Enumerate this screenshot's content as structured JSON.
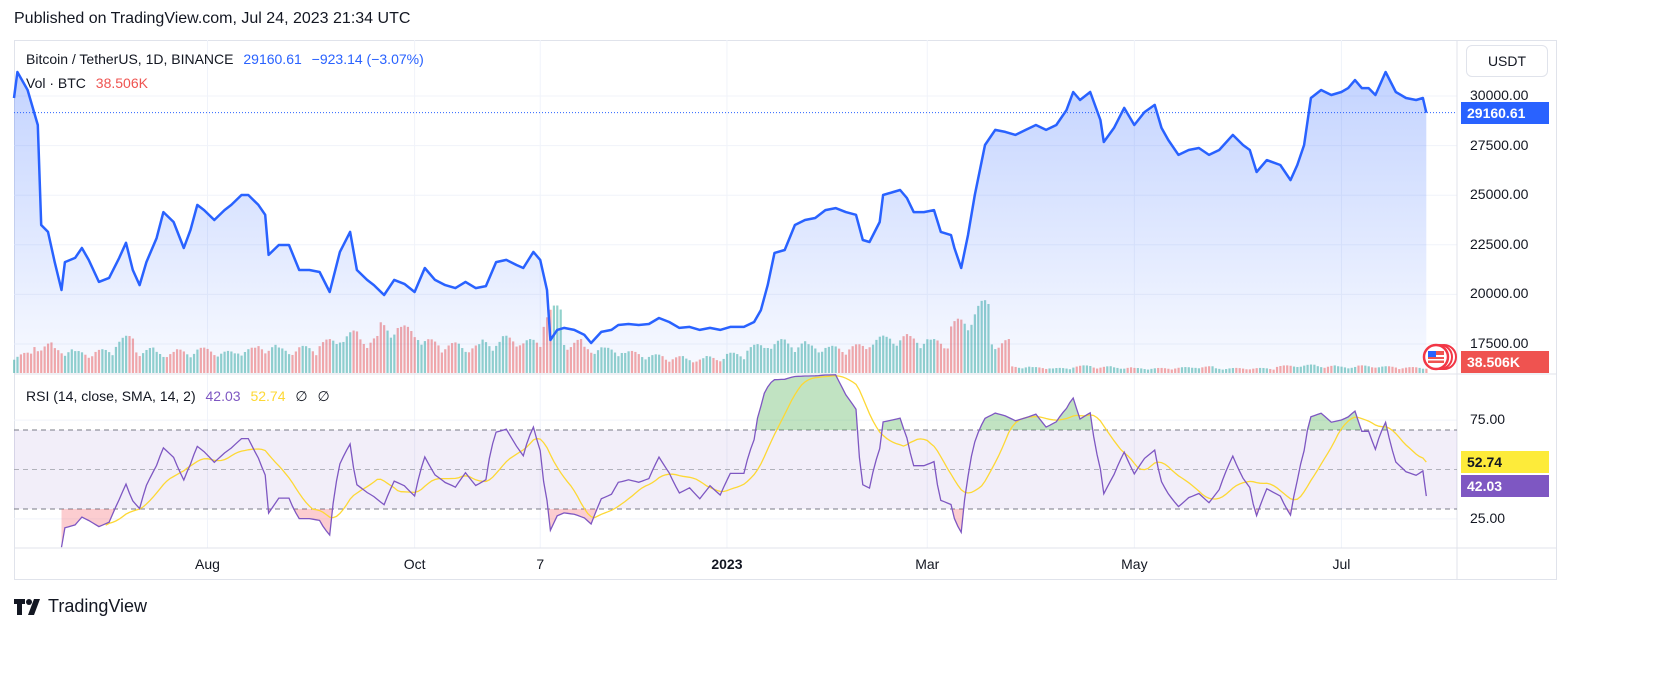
{
  "header": {
    "published": "Published on TradingView.com, Jul 24, 2023 21:34 UTC"
  },
  "legend": {
    "symbol": "Bitcoin / TetherUS, 1D, BINANCE",
    "last": "29160.61",
    "change": "−923.14 (−3.07%)",
    "vol_label": "Vol · BTC",
    "vol_value": "38.506K",
    "rsi_label": "RSI (14, close, SMA, 14, 2)",
    "rsi_value": "42.03",
    "rsi_sma_value": "52.74",
    "rsi_extra1": "∅",
    "rsi_extra2": "∅"
  },
  "currency_button": "USDT",
  "price_tag": "29160.61",
  "volume_tag": "38.506K",
  "rsi_tag": "42.03",
  "rsi_sma_tag": "52.74",
  "brand": "TradingView",
  "colors": {
    "line": "#2962ff",
    "up": "#26a69a",
    "down": "#ef5350",
    "rsi": "#7e57c2",
    "rsi_sma": "#fdd835",
    "vol_tag": "#ef5350"
  },
  "chart_data": {
    "type": "line",
    "title": "Bitcoin / TetherUS, 1D, BINANCE",
    "x_unit": "days since 2022-06-05",
    "price_axis": {
      "ticks": [
        30000,
        27500,
        25000,
        22500,
        20000,
        17500
      ],
      "tick_labels": [
        "30000.00",
        "27500.00",
        "25000.00",
        "22500.00",
        "20000.00",
        "17500.00"
      ]
    },
    "rsi_axis": {
      "ticks": [
        75,
        25
      ],
      "tick_labels": [
        "75.00",
        "25.00"
      ],
      "bands": [
        70,
        50,
        30
      ]
    },
    "time_axis": [
      {
        "label": "Aug",
        "day": 57,
        "bold": false
      },
      {
        "label": "Oct",
        "day": 118,
        "bold": false
      },
      {
        "label": "7",
        "day": 155,
        "bold": false
      },
      {
        "label": "2023",
        "day": 210,
        "bold": true
      },
      {
        "label": "Mar",
        "day": 269,
        "bold": false
      },
      {
        "label": "May",
        "day": 330,
        "bold": false
      },
      {
        "label": "Jul",
        "day": 391,
        "bold": false
      }
    ],
    "price": [
      [
        0,
        29900
      ],
      [
        1,
        31210
      ],
      [
        4,
        30300
      ],
      [
        7,
        28540
      ],
      [
        8,
        23500
      ],
      [
        10,
        23150
      ],
      [
        12,
        21630
      ],
      [
        14,
        20220
      ],
      [
        15,
        21630
      ],
      [
        18,
        21840
      ],
      [
        20,
        22340
      ],
      [
        22,
        21740
      ],
      [
        25,
        20630
      ],
      [
        28,
        20830
      ],
      [
        31,
        21840
      ],
      [
        33,
        22600
      ],
      [
        35,
        21230
      ],
      [
        37,
        20470
      ],
      [
        39,
        21630
      ],
      [
        42,
        22840
      ],
      [
        44,
        24150
      ],
      [
        47,
        23650
      ],
      [
        50,
        22340
      ],
      [
        52,
        23250
      ],
      [
        54,
        24510
      ],
      [
        56,
        24250
      ],
      [
        59,
        23750
      ],
      [
        62,
        24250
      ],
      [
        64,
        24510
      ],
      [
        67,
        25010
      ],
      [
        69,
        25010
      ],
      [
        72,
        24510
      ],
      [
        74,
        24010
      ],
      [
        75,
        21990
      ],
      [
        78,
        22490
      ],
      [
        81,
        22490
      ],
      [
        84,
        21230
      ],
      [
        87,
        21230
      ],
      [
        90,
        21130
      ],
      [
        93,
        20120
      ],
      [
        96,
        22140
      ],
      [
        99,
        23150
      ],
      [
        101,
        21230
      ],
      [
        104,
        20730
      ],
      [
        106,
        20470
      ],
      [
        109,
        19970
      ],
      [
        112,
        20730
      ],
      [
        115,
        20530
      ],
      [
        118,
        20120
      ],
      [
        121,
        21330
      ],
      [
        124,
        20730
      ],
      [
        127,
        20470
      ],
      [
        130,
        20320
      ],
      [
        133,
        20630
      ],
      [
        136,
        20320
      ],
      [
        139,
        20420
      ],
      [
        142,
        21630
      ],
      [
        145,
        21740
      ],
      [
        148,
        21480
      ],
      [
        150,
        21330
      ],
      [
        153,
        22140
      ],
      [
        155,
        21740
      ],
      [
        157,
        20220
      ],
      [
        158,
        17700
      ],
      [
        160,
        18210
      ],
      [
        162,
        18310
      ],
      [
        165,
        18210
      ],
      [
        168,
        17960
      ],
      [
        170,
        17550
      ],
      [
        173,
        18110
      ],
      [
        176,
        18210
      ],
      [
        178,
        18460
      ],
      [
        181,
        18510
      ],
      [
        184,
        18460
      ],
      [
        187,
        18510
      ],
      [
        190,
        18810
      ],
      [
        193,
        18610
      ],
      [
        196,
        18310
      ],
      [
        199,
        18360
      ],
      [
        202,
        18210
      ],
      [
        205,
        18310
      ],
      [
        208,
        18210
      ],
      [
        211,
        18360
      ],
      [
        215,
        18360
      ],
      [
        218,
        18610
      ],
      [
        220,
        19210
      ],
      [
        222,
        20470
      ],
      [
        224,
        22090
      ],
      [
        227,
        22240
      ],
      [
        230,
        23500
      ],
      [
        233,
        23750
      ],
      [
        236,
        23850
      ],
      [
        239,
        24250
      ],
      [
        242,
        24350
      ],
      [
        245,
        24150
      ],
      [
        248,
        24010
      ],
      [
        250,
        22740
      ],
      [
        252,
        22640
      ],
      [
        255,
        23650
      ],
      [
        256,
        25010
      ],
      [
        259,
        25160
      ],
      [
        261,
        25260
      ],
      [
        263,
        24860
      ],
      [
        265,
        24150
      ],
      [
        268,
        24150
      ],
      [
        271,
        24250
      ],
      [
        273,
        23150
      ],
      [
        276,
        22990
      ],
      [
        277,
        22340
      ],
      [
        279,
        21330
      ],
      [
        281,
        22990
      ],
      [
        283,
        25010
      ],
      [
        286,
        27530
      ],
      [
        289,
        28290
      ],
      [
        292,
        28190
      ],
      [
        295,
        28040
      ],
      [
        298,
        28290
      ],
      [
        301,
        28540
      ],
      [
        304,
        28290
      ],
      [
        307,
        28540
      ],
      [
        310,
        29290
      ],
      [
        312,
        30200
      ],
      [
        314,
        29800
      ],
      [
        317,
        30200
      ],
      [
        320,
        28790
      ],
      [
        321,
        27680
      ],
      [
        324,
        28390
      ],
      [
        327,
        29400
      ],
      [
        330,
        28540
      ],
      [
        333,
        29190
      ],
      [
        336,
        29550
      ],
      [
        338,
        28390
      ],
      [
        340,
        27780
      ],
      [
        343,
        27030
      ],
      [
        346,
        27280
      ],
      [
        349,
        27380
      ],
      [
        352,
        27030
      ],
      [
        355,
        27280
      ],
      [
        359,
        28040
      ],
      [
        362,
        27530
      ],
      [
        364,
        27280
      ],
      [
        366,
        26170
      ],
      [
        369,
        26770
      ],
      [
        373,
        26520
      ],
      [
        376,
        25760
      ],
      [
        378,
        26520
      ],
      [
        380,
        27530
      ],
      [
        382,
        29900
      ],
      [
        385,
        30300
      ],
      [
        388,
        30050
      ],
      [
        391,
        30200
      ],
      [
        393,
        30400
      ],
      [
        395,
        30800
      ],
      [
        397,
        30400
      ],
      [
        399,
        30400
      ],
      [
        401,
        30050
      ],
      [
        404,
        31210
      ],
      [
        407,
        30200
      ],
      [
        410,
        29900
      ],
      [
        413,
        29800
      ],
      [
        415,
        29900
      ],
      [
        416,
        29160.61
      ]
    ],
    "volume_k_btc_6day_blocks": [
      120,
      180,
      150,
      130,
      140,
      220,
      150,
      130,
      140,
      150,
      130,
      150,
      170,
      150,
      160,
      200,
      250,
      220,
      300,
      280,
      200,
      180,
      170,
      200,
      220,
      200,
      400,
      200,
      160,
      150,
      130,
      110,
      100,
      90,
      100,
      120,
      170,
      200,
      190,
      170,
      160,
      170,
      220,
      230,
      220,
      200,
      320,
      430,
      200,
      40,
      35,
      30,
      45,
      40,
      35,
      30,
      30,
      35,
      40,
      30,
      30,
      30,
      45,
      50,
      45,
      40,
      45,
      40,
      35,
      35
    ],
    "rsi": {
      "length": 14,
      "source": "close",
      "smoothing": "SMA",
      "smoothing_length": 14,
      "last": 42.03,
      "sma_last": 52.74
    }
  }
}
